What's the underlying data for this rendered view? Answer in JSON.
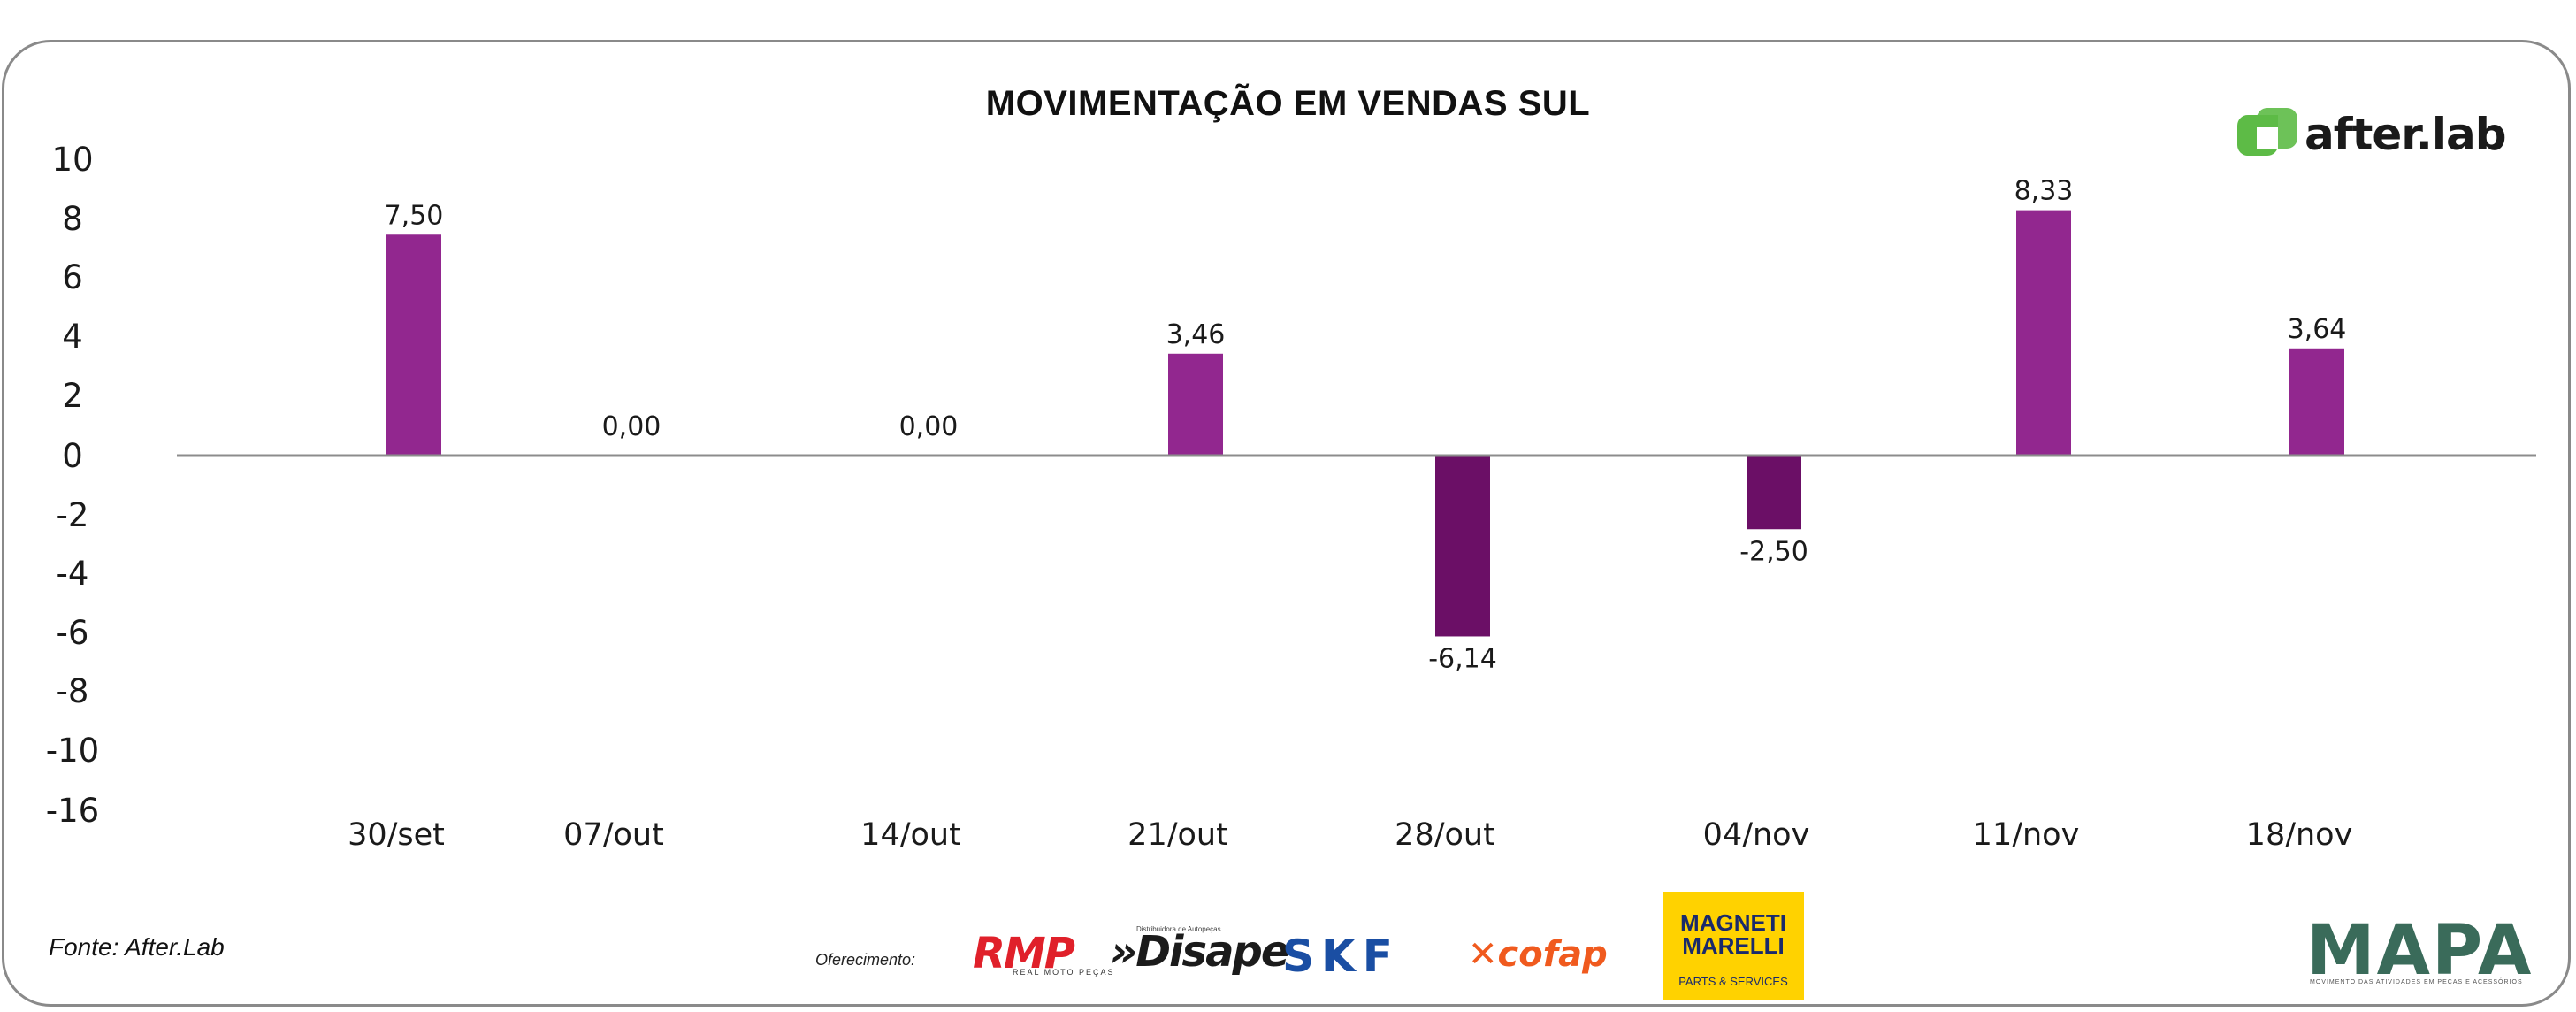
{
  "chart_data": {
    "type": "bar",
    "title": "MOVIMENTAÇÃO EM VENDAS SUL",
    "categories": [
      "30/set",
      "07/out",
      "14/out",
      "21/out",
      "28/out",
      "04/nov",
      "11/nov",
      "18/nov"
    ],
    "values": [
      7.5,
      0.0,
      0.0,
      3.46,
      -6.14,
      -2.5,
      8.33,
      3.64
    ],
    "value_labels": [
      "7,50",
      "0,00",
      "0,00",
      "3,46",
      "-6,14",
      "-2,50",
      "8,33",
      "3,64"
    ],
    "y_ticks": [
      10,
      8,
      6,
      4,
      2,
      0,
      -2,
      -4,
      -6,
      -8,
      -10,
      -16
    ],
    "xlabel": "",
    "ylabel": "",
    "grid": false,
    "colors": {
      "positive": "#92278f",
      "negative": "#6b0f66",
      "axis": "#8c8c8c"
    }
  },
  "brand": {
    "name": "after.lab",
    "color": "#5dbb46"
  },
  "footer": {
    "source": "Fonte: After.Lab",
    "sponsor_label": "Oferecimento:",
    "sponsors": {
      "rmp": "RMP",
      "rmp_sub": "REAL MOTO PEÇAS",
      "disape": "»Disape",
      "disape_sub": "Distribuidora de Autopeças",
      "skf": "SKF",
      "cofap": "✕cofap",
      "magneti_line1": "MAGNETI",
      "magneti_line2": "MARELLI",
      "magneti_sub": "PARTS & SERVICES"
    },
    "mapa": "MAPA",
    "mapa_sub": "MOVIMENTO DAS ATIVIDADES EM PEÇAS E ACESSÓRIOS"
  }
}
